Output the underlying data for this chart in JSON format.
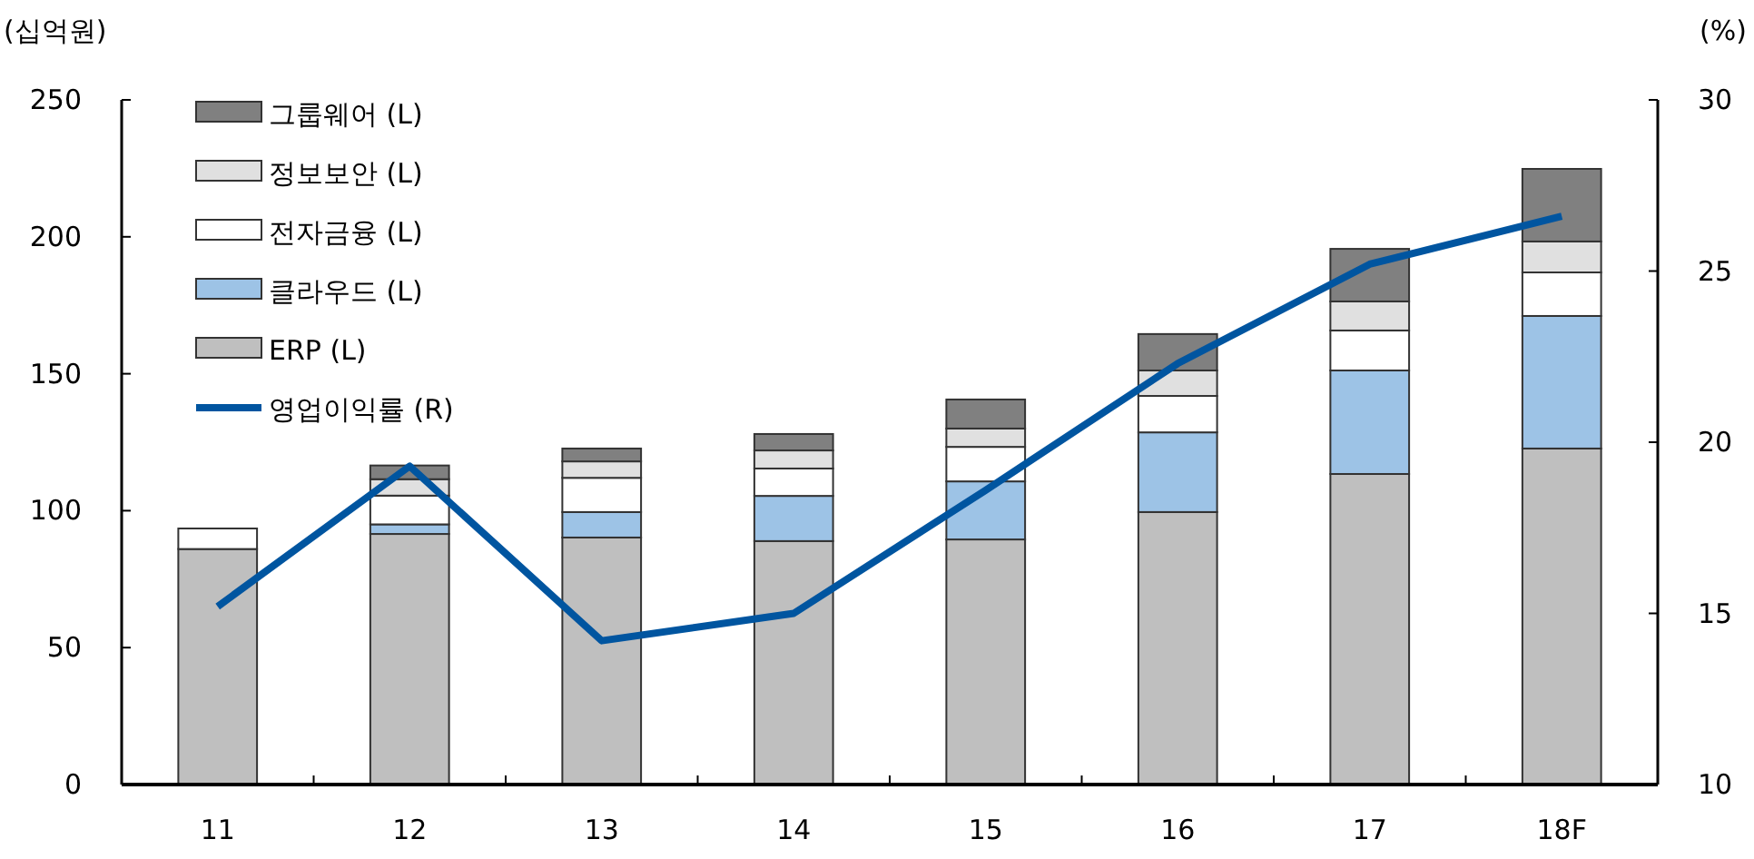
{
  "chart_data": {
    "type": "bar",
    "stacked": true,
    "ylabel": "(십억원)",
    "y2label": "(%)",
    "categories": [
      "11",
      "12",
      "13",
      "14",
      "15",
      "16",
      "17",
      "18F"
    ],
    "series": [
      {
        "name": "ERP (L)",
        "color": "#bfbfbf",
        "values": [
          86,
          91.5,
          90.2,
          88.9,
          89.5,
          99.5,
          113.4,
          122.7
        ]
      },
      {
        "name": "클라우드 (L)",
        "color": "#9dc3e6",
        "values": [
          0,
          3.5,
          9.3,
          16.5,
          21.2,
          29.1,
          37.8,
          48.4
        ]
      },
      {
        "name": "전자금융 (L)",
        "color": "#ffffff",
        "values": [
          7.5,
          10.5,
          12.5,
          10,
          12.6,
          13.3,
          14.6,
          15.9
        ]
      },
      {
        "name": "정보보안 (L)",
        "color": "#e0e0e0",
        "values": [
          0,
          6,
          6,
          6.6,
          6.7,
          9.3,
          10.6,
          11.3
        ]
      },
      {
        "name": "그룹웨어 (L)",
        "color": "#808080",
        "values": [
          0,
          5,
          4.7,
          6,
          10.6,
          13.3,
          19.2,
          26.5
        ]
      },
      {
        "name": "영업이익률 (R)",
        "color": "#0055a0",
        "type": "line",
        "axis": "y2",
        "values": [
          15.2,
          19.3,
          14.2,
          15.0,
          18.6,
          22.3,
          25.2,
          26.6
        ]
      }
    ],
    "ylim": [
      0,
      250
    ],
    "yticks": [
      0,
      50,
      100,
      150,
      200,
      250
    ],
    "y2lim": [
      10,
      30
    ],
    "y2ticks": [
      10,
      15,
      20,
      25,
      30
    ],
    "legend": "top left",
    "grid": false
  }
}
